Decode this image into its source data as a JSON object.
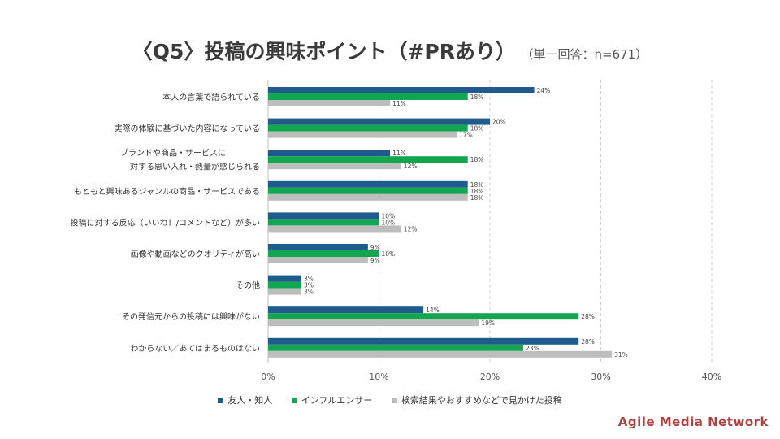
{
  "title": "〈Q5〉投稿の興味ポイント（#PRあり）",
  "subtitle": "（単一回答：n=671）",
  "brand": "Agile Media Network",
  "colors": {
    "friends": "#1f5b8c",
    "influencer": "#12a650",
    "recommended": "#bdbdbd",
    "grid": "#d0d0d0"
  },
  "chart_data": {
    "type": "bar",
    "orientation": "horizontal",
    "categories": [
      "本人の言葉で語られている",
      "実際の体験に基づいた内容になっている",
      "ブランドや商品・サービスに\n対する思い入れ・熱量が感じられる",
      "もともと興味あるジャンルの商品・サービスである",
      "投稿に対する反応（いいね！/コメントなど）が多い",
      "画像や動画などのクオリティが高い",
      "その他",
      "その発信元からの投稿には興味がない",
      "わからない／あてはまるものはない"
    ],
    "series": [
      {
        "name": "友人・知人",
        "values": [
          24,
          20,
          11,
          18,
          10,
          9,
          3,
          14,
          28
        ]
      },
      {
        "name": "インフルエンサー",
        "values": [
          18,
          18,
          18,
          18,
          10,
          10,
          3,
          28,
          23
        ]
      },
      {
        "name": "検索結果やおすすめなどで見かけた投稿",
        "values": [
          11,
          17,
          12,
          18,
          12,
          9,
          3,
          19,
          31
        ]
      }
    ],
    "xlim": [
      0,
      40
    ],
    "xticks": [
      "0%",
      "10%",
      "20%",
      "30%",
      "40%"
    ],
    "value_suffix": "%",
    "legend_position": "bottom",
    "grid": "vertical dashed"
  }
}
